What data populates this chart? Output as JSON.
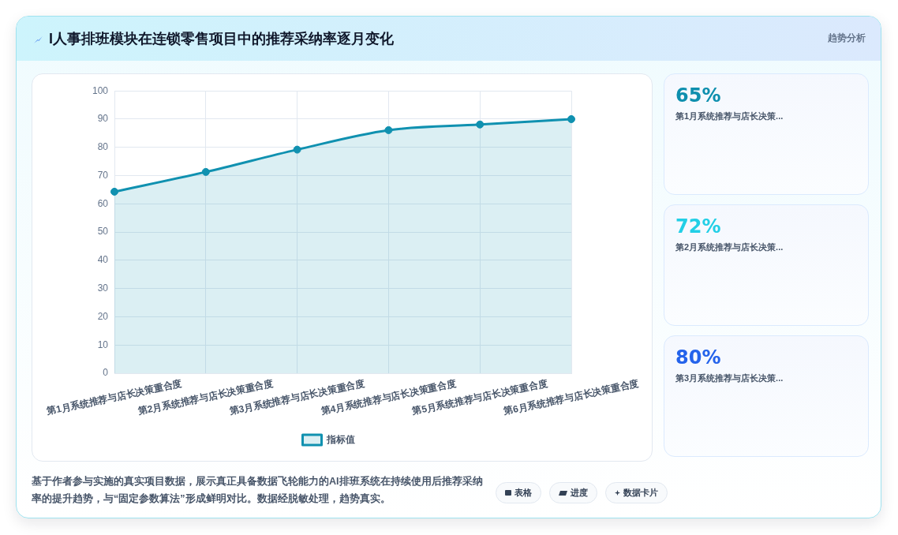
{
  "chart_data": [
    {
      "type": "area",
      "title": "I人事排班模块在连锁零售项目中的推荐采纳率逐月变化",
      "categories": [
        "第1月系统推荐与店长决策重合度",
        "第2月系统推荐与店长决策重合度",
        "第3月系统推荐与店长决策重合度",
        "第4月系统推荐与店长决策重合度",
        "第5月系统推荐与店长决策重合度",
        "第6月系统推荐与店长决策重合度"
      ],
      "series": [
        {
          "name": "指标值",
          "color": "#1091b0",
          "values": [
            64.3,
            71.3,
            79.2,
            86.1,
            88.1,
            90
          ]
        }
      ],
      "ylim": [
        0,
        100
      ],
      "yticks": [
        0,
        10,
        20,
        30,
        40,
        50,
        60,
        70,
        80,
        90,
        100
      ],
      "grid": true,
      "legend": "bottom",
      "marker": "circle",
      "line_style": "solid",
      "annotations": [
        "基于作者参与实施的真实项目数据，展示真正具备数据飞轮能力的AI排班系统在持续使用后推荐采纳率的提升趋势，与“固定参数算法”形成鲜明对比。数据经脱敏处理，趋势真实。",
        "表格",
        "进度",
        "数据卡片"
      ]
    },
    {
      "type": "other",
      "title": "趋势分析",
      "annotations": [
        "65%",
        "第1月系统推荐与店长决策...",
        "72%",
        "第2月系统推荐与店长决策...",
        "80%",
        "第3月系统推荐与店长决策..."
      ],
      "colors": [
        "#0e8fae",
        "#22cfe6",
        "#2463eb"
      ]
    }
  ]
}
